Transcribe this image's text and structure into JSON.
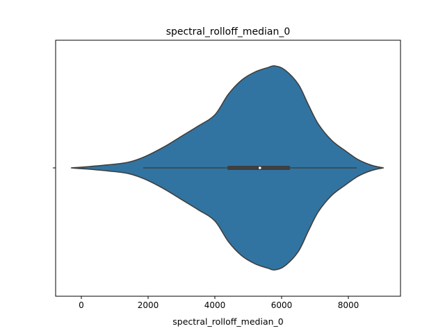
{
  "chart_data": {
    "type": "violin",
    "orientation": "horizontal",
    "title": "spectral_rolloff_median_0",
    "xlabel": "spectral_rolloff_median_0",
    "ylabel": "",
    "xlim": [
      -900,
      11980
    ],
    "xticks": [
      0,
      2000,
      4000,
      6000,
      8000
    ],
    "y_ticks": [
      ""
    ],
    "colors": {
      "violin_fill": "#3274a1",
      "violin_edge": "#3f3f3f",
      "box": "#3f3f3f",
      "median_dot": "#ffffff"
    },
    "violin": {
      "min": -300,
      "max": 9050,
      "whisker_low": 1850,
      "q1": 4380,
      "median": 5350,
      "q3": 6250,
      "whisker_high": 8250,
      "max_half_width": 1.0,
      "density_profile": [
        [
          -300,
          0.0
        ],
        [
          200,
          0.012
        ],
        [
          800,
          0.03
        ],
        [
          1400,
          0.055
        ],
        [
          1900,
          0.11
        ],
        [
          2500,
          0.21
        ],
        [
          3000,
          0.31
        ],
        [
          3500,
          0.41
        ],
        [
          4000,
          0.52
        ],
        [
          4400,
          0.72
        ],
        [
          4800,
          0.86
        ],
        [
          5200,
          0.94
        ],
        [
          5600,
          0.985
        ],
        [
          5800,
          1.0
        ],
        [
          6100,
          0.96
        ],
        [
          6500,
          0.82
        ],
        [
          6800,
          0.62
        ],
        [
          7100,
          0.43
        ],
        [
          7500,
          0.27
        ],
        [
          7900,
          0.17
        ],
        [
          8300,
          0.08
        ],
        [
          8700,
          0.025
        ],
        [
          9050,
          0.0
        ]
      ]
    }
  }
}
